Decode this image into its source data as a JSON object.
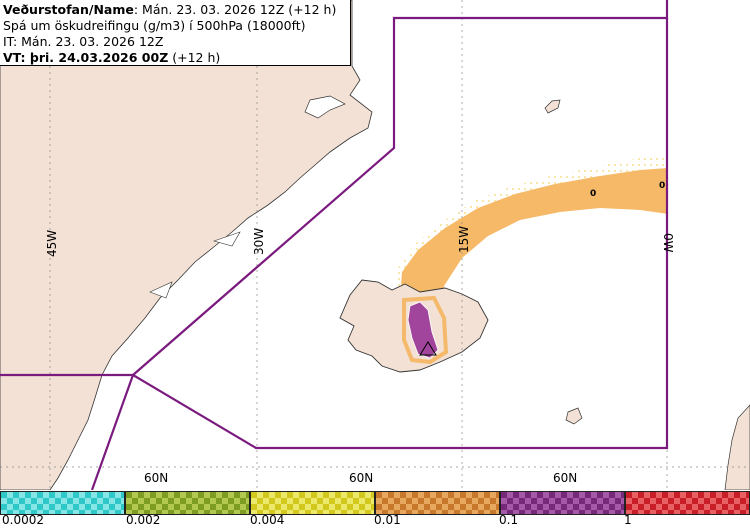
{
  "header": {
    "line1_bold": "Veðurstofan/Name",
    "line1_rest": ": Mán. 23. 03. 2026 12Z (+12 h)",
    "line2": "Spá um öskudreifingu (g/m3) í 500hPa (18000ft)",
    "line3": "IT: Mán. 23. 03. 2026 12Z",
    "line4_bold": "VT: þri. 24.03.2026 00Z",
    "line4_rest": " (+12 h)"
  },
  "grid_labels": {
    "lon_45w": "45W",
    "lon_30w": "30W",
    "lon_15w": "15W",
    "lon_0w": "0W",
    "lat_60n_a": "60N",
    "lat_60n_b": "60N",
    "lat_60n_c": "60N"
  },
  "plume_markers": [
    "0",
    "0"
  ],
  "legend": {
    "bins": [
      {
        "color": "#2ec8c8",
        "alt": "#86e6e6"
      },
      {
        "color": "#7f9c22",
        "alt": "#b2c84e"
      },
      {
        "color": "#d2c81e",
        "alt": "#ece86a"
      },
      {
        "color": "#c8782a",
        "alt": "#e6a85e"
      },
      {
        "color": "#78287a",
        "alt": "#a45aa6"
      },
      {
        "color": "#c81e28",
        "alt": "#e86064"
      }
    ],
    "labels": [
      "0.0002",
      "0.002",
      "0.004",
      "0.01",
      "0.1",
      "1"
    ]
  },
  "colors": {
    "land": "#f2e1d4",
    "boundary": "#7a1a7e",
    "ash_low": "#f5b560",
    "ash_high": "#a0449c"
  }
}
